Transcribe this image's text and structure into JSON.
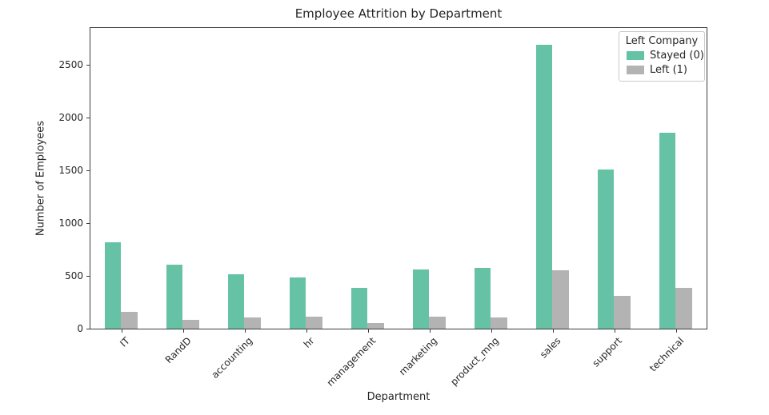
{
  "chart_data": {
    "type": "bar",
    "title": "Employee Attrition by Department",
    "xlabel": "Department",
    "ylabel": "Number of Employees",
    "categories": [
      "IT",
      "RandD",
      "accounting",
      "hr",
      "management",
      "marketing",
      "product_mng",
      "sales",
      "support",
      "technical"
    ],
    "series": [
      {
        "name": "Stayed (0)",
        "key": "stayed",
        "color": "#66c2a5",
        "values": [
          818,
          609,
          512,
          488,
          384,
          561,
          576,
          2689,
          1509,
          1854
        ]
      },
      {
        "name": "Left (1)",
        "key": "left",
        "color": "#b3b3b3",
        "values": [
          158,
          85,
          109,
          113,
          52,
          112,
          110,
          550,
          312,
          390
        ]
      }
    ],
    "legend": {
      "title": "Left Company",
      "position": "upper right"
    },
    "ylim": [
      0,
      2850
    ],
    "yticks": [
      0,
      500,
      1000,
      1500,
      2000,
      2500
    ],
    "grid": false,
    "axis_color": "#3c3c3c",
    "text_color": "#262626"
  }
}
